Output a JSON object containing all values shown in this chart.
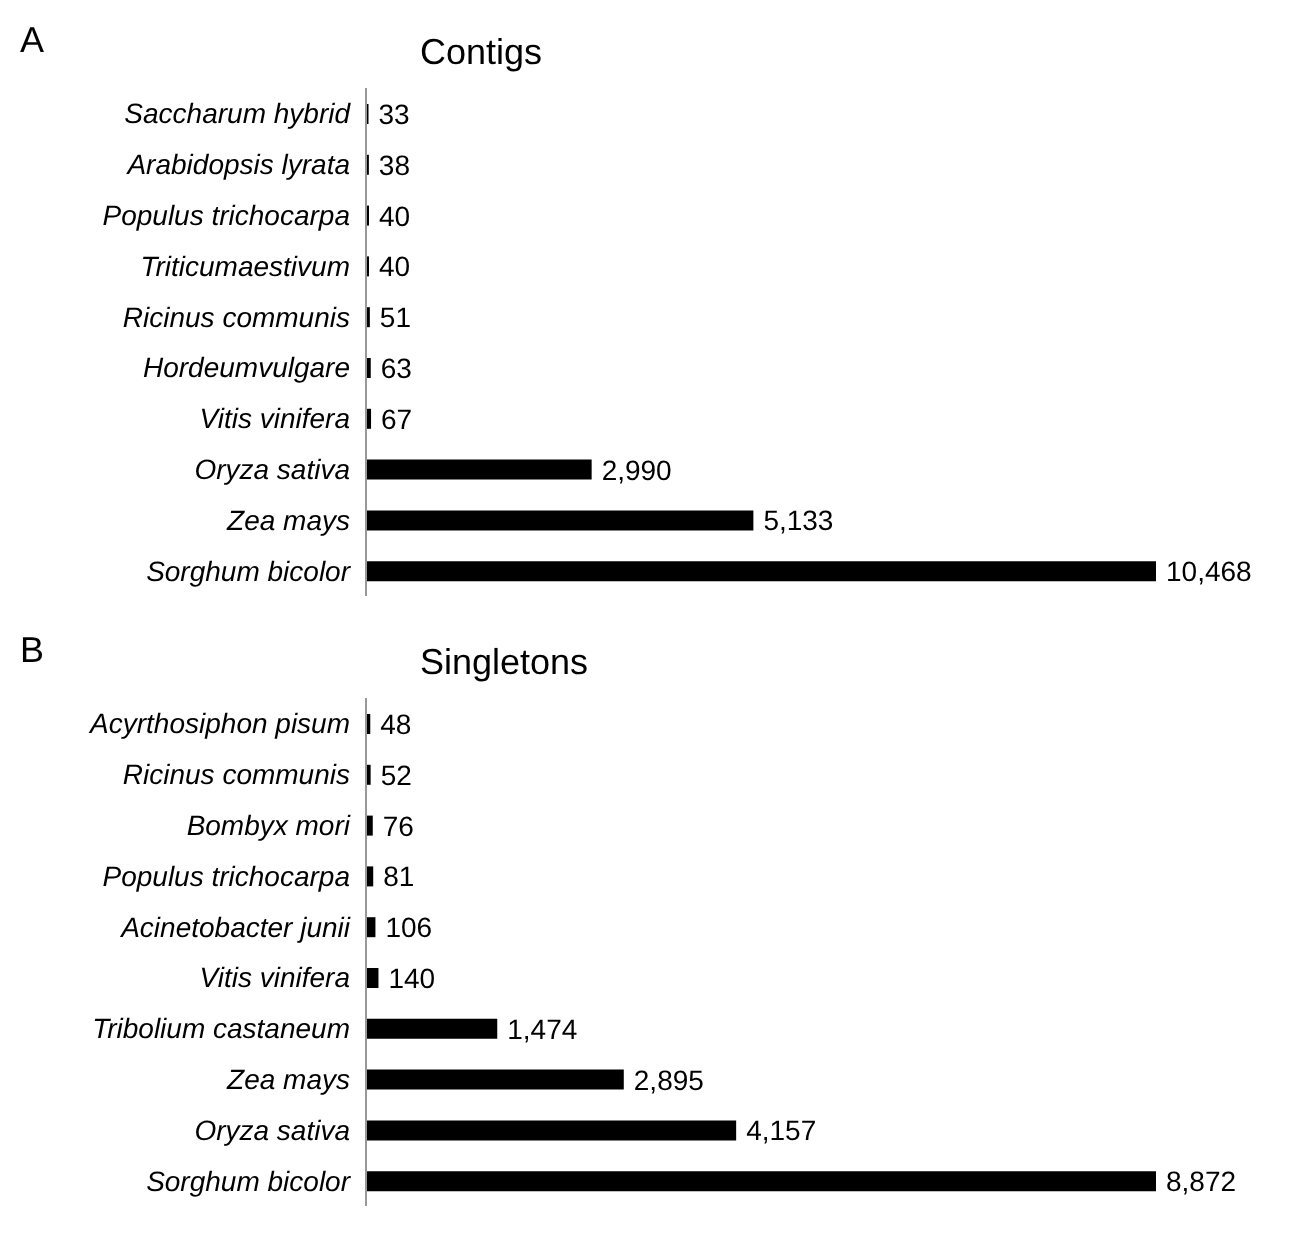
{
  "chart_data": [
    {
      "type": "bar",
      "orientation": "horizontal",
      "title": "Contigs",
      "annotations": [
        "A"
      ],
      "categories": [
        "Saccharum hybrid",
        "Arabidopsis lyrata",
        "Populus trichocarpa",
        "Triticumaestivum",
        "Ricinus communis",
        "Hordeumvulgare",
        "Vitis vinifera",
        "Oryza sativa",
        "Zea mays",
        "Sorghum bicolor"
      ],
      "values": [
        33,
        38,
        40,
        40,
        51,
        63,
        67,
        2990,
        5133,
        10468
      ],
      "value_labels": [
        "33",
        "38",
        "40",
        "40",
        "51",
        "63",
        "67",
        "2,990",
        "5,133",
        "10,468"
      ],
      "color": "#000000",
      "tick_labels": "y"
    },
    {
      "type": "bar",
      "orientation": "horizontal",
      "title": "Singletons",
      "annotations": [
        "B"
      ],
      "categories": [
        "Acyrthosiphon pisum",
        "Ricinus communis",
        "Bombyx mori",
        "Populus trichocarpa",
        "Acinetobacter junii",
        "Vitis vinifera",
        "Tribolium castaneum",
        "Zea mays",
        "Oryza sativa",
        "Sorghum bicolor"
      ],
      "values": [
        48,
        52,
        76,
        81,
        106,
        140,
        1474,
        2895,
        4157,
        8872
      ],
      "value_labels": [
        "48",
        "52",
        "76",
        "81",
        "106",
        "140",
        "1,474",
        "2,895",
        "4,157",
        "8,872"
      ],
      "color": "#000000",
      "tick_labels": "y"
    }
  ]
}
